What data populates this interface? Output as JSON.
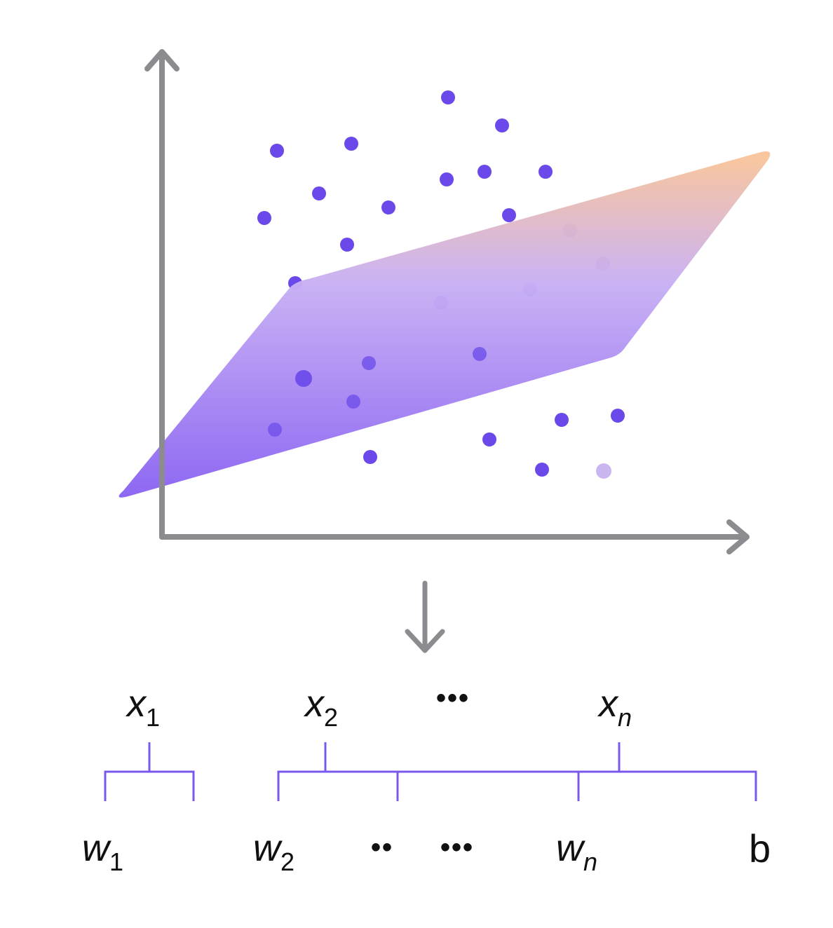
{
  "colors": {
    "axis": "#8c8c90",
    "point": "#6a48ea",
    "point_light": "#c9b6ef",
    "bracket": "#7b58ec",
    "plane_top": "#f8c49c",
    "plane_mid": "#c8b0f4",
    "plane_bottom": "#8a63f2",
    "text": "#111111"
  },
  "icons": {
    "y_axis_arrow": "arrow-up-icon",
    "x_axis_arrow": "arrow-right-icon",
    "flow_arrow": "arrow-down-icon"
  },
  "inputs": {
    "x1": {
      "base": "x",
      "sub": "1"
    },
    "x2": {
      "base": "x",
      "sub": "2"
    },
    "ellipsis": "•••",
    "xn": {
      "base": "x",
      "sub": "n"
    }
  },
  "weights": {
    "w1": {
      "base": "w",
      "sub": "1"
    },
    "w2": {
      "base": "w",
      "sub": "2"
    },
    "ellipsis_short": "••",
    "ellipsis": "•••",
    "wn": {
      "base": "w",
      "sub": "n"
    },
    "bias": "b"
  }
}
